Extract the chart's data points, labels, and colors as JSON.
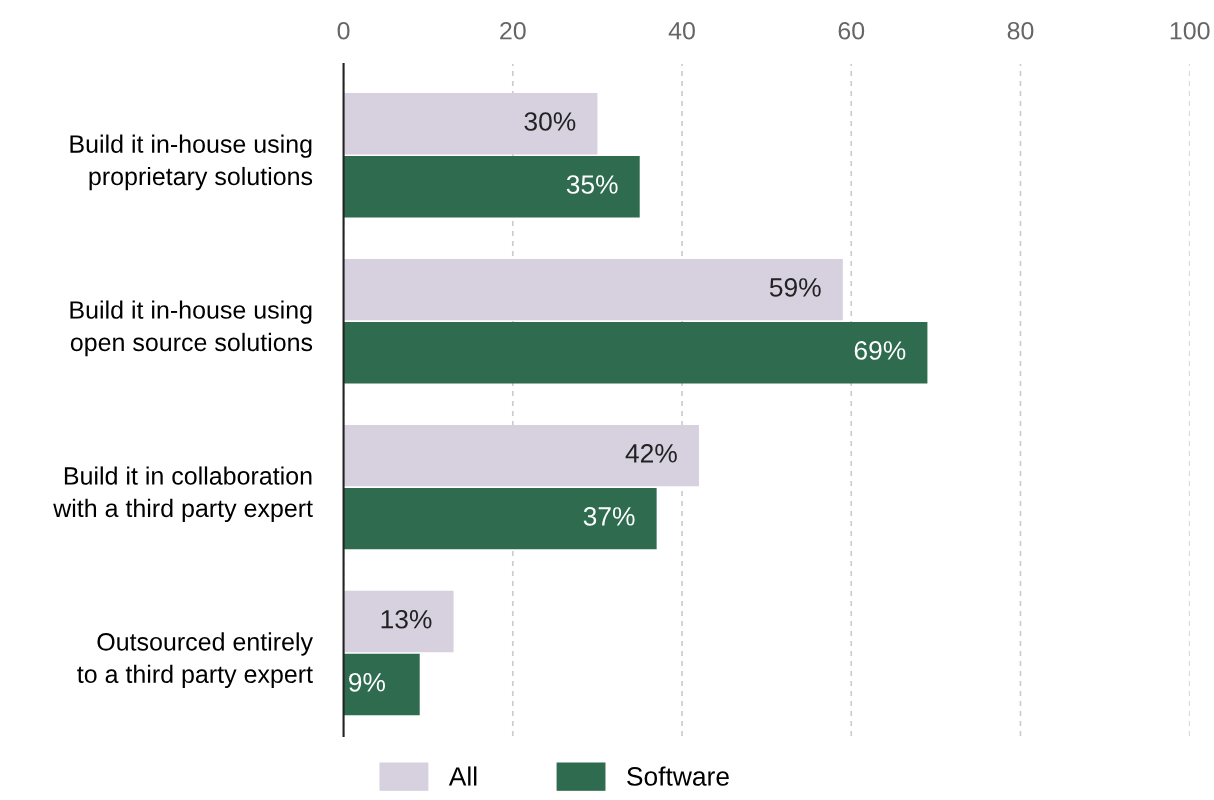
{
  "chart_data": {
    "type": "bar",
    "orientation": "horizontal",
    "categories": [
      "Build it in-house using\nproprietary solutions",
      "Build it in-house using\nopen source solutions",
      "Build it in collaboration\nwith a third party expert",
      "Outsourced entirely\nto a third party expert"
    ],
    "series": [
      {
        "name": "All",
        "color": "#d6d0df",
        "values": [
          30,
          59,
          42,
          13
        ],
        "value_labels": [
          "30%",
          "59%",
          "42%",
          "13%"
        ]
      },
      {
        "name": "Software",
        "color": "#2e6b4f",
        "values": [
          35,
          69,
          37,
          9
        ],
        "value_labels": [
          "35%",
          "69%",
          "37%",
          "9%"
        ]
      }
    ],
    "xlim": [
      0,
      100
    ],
    "xticks": [
      0,
      20,
      40,
      60,
      80,
      100
    ],
    "grid": "x",
    "legend": "bottom"
  }
}
